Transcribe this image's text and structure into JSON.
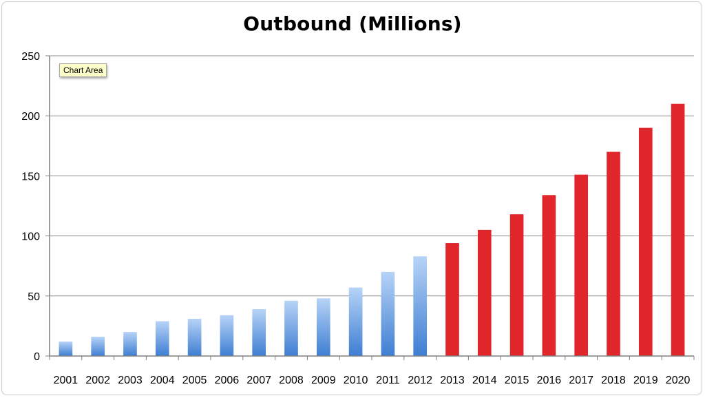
{
  "chart_data": {
    "type": "bar",
    "title": "Outbound (Millions)",
    "xlabel": "",
    "ylabel": "",
    "ylim": [
      0,
      250
    ],
    "yticks": [
      0,
      50,
      100,
      150,
      200,
      250
    ],
    "grid": true,
    "categories": [
      "2001",
      "2002",
      "2003",
      "2004",
      "2005",
      "2006",
      "2007",
      "2008",
      "2009",
      "2010",
      "2011",
      "2012",
      "2013",
      "2014",
      "2015",
      "2016",
      "2017",
      "2018",
      "2019",
      "2020"
    ],
    "values": [
      12,
      16,
      20,
      29,
      31,
      34,
      39,
      46,
      48,
      57,
      70,
      83,
      94,
      105,
      118,
      134,
      151,
      170,
      190,
      210
    ],
    "colors": {
      "historical_top": "#b7d3f7",
      "historical_bottom": "#3e7ed2",
      "projected": "#e0252b",
      "gridline": "#8c8c8c",
      "axis": "#7f7f7f"
    },
    "projected_from_index": 12
  },
  "tooltip": {
    "text": "Chart Area"
  }
}
